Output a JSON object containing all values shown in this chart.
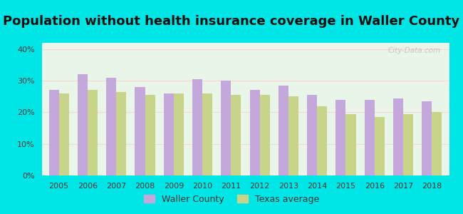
{
  "title": "Population without health insurance coverage in Waller County",
  "years": [
    2005,
    2006,
    2007,
    2008,
    2009,
    2010,
    2011,
    2012,
    2013,
    2014,
    2015,
    2016,
    2017,
    2018
  ],
  "waller_county": [
    27.0,
    32.0,
    31.0,
    28.0,
    26.0,
    30.5,
    30.0,
    27.0,
    28.5,
    25.5,
    24.0,
    24.0,
    24.5,
    23.5
  ],
  "texas_avg": [
    26.0,
    27.0,
    26.5,
    25.5,
    26.0,
    26.0,
    25.5,
    25.5,
    25.0,
    22.0,
    19.5,
    18.5,
    19.5,
    20.0
  ],
  "waller_color": "#c4a8dc",
  "texas_color": "#c8d48a",
  "bg_outer": "#00e5e5",
  "bg_chart_top": "#e8f5e8",
  "bg_chart_bottom": "#d0ecd0",
  "ylim": [
    0,
    42
  ],
  "yticks": [
    0,
    10,
    20,
    30,
    40
  ],
  "ytick_labels": [
    "0%",
    "10%",
    "20%",
    "30%",
    "40%"
  ],
  "title_fontsize": 13,
  "bar_width": 0.35,
  "legend_label_waller": "Waller County",
  "legend_label_texas": "Texas average",
  "watermark": "City-Data.com"
}
